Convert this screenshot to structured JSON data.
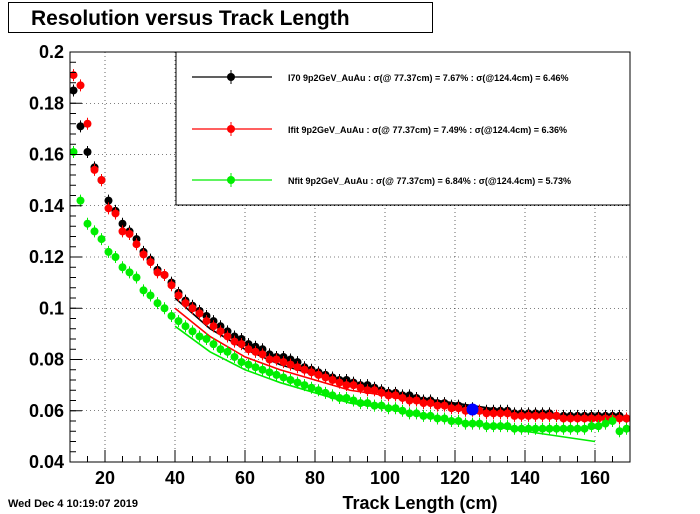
{
  "title": "Resolution versus Track Length",
  "timestamp": "Wed Dec  4 10:19:07 2019",
  "chart_data": {
    "type": "scatter",
    "title": "Resolution versus Track Length",
    "xlabel": "Track Length (cm)",
    "ylabel": "",
    "xlim": [
      10,
      170
    ],
    "ylim": [
      0.04,
      0.2
    ],
    "grid": true,
    "legend_position": "top-right",
    "x_ticks": [
      20,
      40,
      60,
      80,
      100,
      120,
      140,
      160
    ],
    "x_tick_labels": [
      "20",
      "40",
      "60",
      "80",
      "100",
      "120",
      "140",
      "160"
    ],
    "y_ticks": [
      0.04,
      0.06,
      0.08,
      0.1,
      0.12,
      0.14,
      0.16,
      0.18,
      0.2
    ],
    "y_tick_labels": [
      "0.04",
      "0.06",
      "0.08",
      "0.1",
      "0.12",
      "0.14",
      "0.16",
      "0.18",
      "0.2"
    ],
    "series": [
      {
        "name": "I70  9p2GeV_AuAu : σ(@ 77.37cm) =  7.67% : σ(@124.4cm) =  6.46%",
        "color": "#000000",
        "x": [
          11,
          13,
          15,
          17,
          19,
          21,
          23,
          25,
          27,
          29,
          31,
          33,
          35,
          37,
          39,
          41,
          43,
          45,
          47,
          49,
          51,
          53,
          55,
          57,
          59,
          61,
          63,
          65,
          67,
          69,
          71,
          73,
          75,
          77,
          79,
          81,
          83,
          85,
          87,
          89,
          91,
          93,
          95,
          97,
          99,
          101,
          103,
          105,
          107,
          109,
          111,
          113,
          115,
          117,
          119,
          121,
          123,
          125,
          127,
          129,
          131,
          133,
          135,
          137,
          139,
          141,
          143,
          145,
          147,
          149,
          151,
          153,
          155,
          157,
          159,
          161,
          163,
          165,
          167,
          169
        ],
        "y": [
          0.185,
          0.171,
          0.161,
          0.155,
          0.15,
          0.142,
          0.138,
          0.133,
          0.13,
          0.127,
          0.122,
          0.119,
          0.115,
          0.113,
          0.11,
          0.106,
          0.103,
          0.101,
          0.099,
          0.097,
          0.095,
          0.093,
          0.091,
          0.089,
          0.088,
          0.086,
          0.085,
          0.084,
          0.082,
          0.081,
          0.081,
          0.08,
          0.079,
          0.077,
          0.076,
          0.075,
          0.074,
          0.073,
          0.072,
          0.072,
          0.071,
          0.07,
          0.07,
          0.069,
          0.068,
          0.067,
          0.067,
          0.066,
          0.066,
          0.065,
          0.064,
          0.064,
          0.063,
          0.063,
          0.062,
          0.062,
          0.061,
          0.061,
          0.06,
          0.06,
          0.06,
          0.06,
          0.06,
          0.059,
          0.059,
          0.059,
          0.059,
          0.059,
          0.059,
          0.058,
          0.058,
          0.058,
          0.058,
          0.058,
          0.058,
          0.058,
          0.058,
          0.058,
          0.058,
          0.057
        ],
        "fit_x": [
          40,
          50,
          60,
          70,
          80,
          90,
          100,
          110,
          120,
          130,
          140,
          150,
          160
        ],
        "fit_y": [
          0.104,
          0.092,
          0.084,
          0.078,
          0.074,
          0.07,
          0.067,
          0.065,
          0.063,
          0.061,
          0.059,
          0.058,
          0.057
        ]
      },
      {
        "name": "Ifit 9p2GeV_AuAu : σ(@ 77.37cm) =  7.49% : σ(@124.4cm) =  6.36%",
        "color": "#ff0000",
        "x": [
          11,
          13,
          15,
          17,
          19,
          21,
          23,
          25,
          27,
          29,
          31,
          33,
          35,
          37,
          39,
          41,
          43,
          45,
          47,
          49,
          51,
          53,
          55,
          57,
          59,
          61,
          63,
          65,
          67,
          69,
          71,
          73,
          75,
          77,
          79,
          81,
          83,
          85,
          87,
          89,
          91,
          93,
          95,
          97,
          99,
          101,
          103,
          105,
          107,
          109,
          111,
          113,
          115,
          117,
          119,
          121,
          123,
          125,
          127,
          129,
          131,
          133,
          135,
          137,
          139,
          141,
          143,
          145,
          147,
          149,
          151,
          153,
          155,
          157,
          159,
          161,
          163,
          165,
          167,
          169
        ],
        "y": [
          0.191,
          0.187,
          0.172,
          0.154,
          0.15,
          0.139,
          0.137,
          0.13,
          0.129,
          0.125,
          0.121,
          0.118,
          0.114,
          0.113,
          0.109,
          0.105,
          0.102,
          0.1,
          0.098,
          0.095,
          0.093,
          0.091,
          0.089,
          0.087,
          0.086,
          0.084,
          0.083,
          0.082,
          0.08,
          0.08,
          0.079,
          0.078,
          0.077,
          0.076,
          0.075,
          0.074,
          0.073,
          0.072,
          0.071,
          0.07,
          0.07,
          0.069,
          0.068,
          0.068,
          0.067,
          0.066,
          0.066,
          0.065,
          0.064,
          0.064,
          0.063,
          0.063,
          0.062,
          0.062,
          0.061,
          0.061,
          0.06,
          0.06,
          0.06,
          0.059,
          0.059,
          0.059,
          0.059,
          0.058,
          0.058,
          0.058,
          0.058,
          0.058,
          0.058,
          0.058,
          0.057,
          0.057,
          0.057,
          0.057,
          0.057,
          0.057,
          0.057,
          0.057,
          0.057,
          0.057
        ],
        "fit_x": [
          40,
          50,
          60,
          70,
          80,
          90,
          100,
          110,
          120,
          130,
          140,
          150,
          160
        ],
        "fit_y": [
          0.1,
          0.089,
          0.081,
          0.076,
          0.072,
          0.068,
          0.066,
          0.063,
          0.061,
          0.06,
          0.058,
          0.057,
          0.056
        ]
      },
      {
        "name": "Nfit 9p2GeV_AuAu : σ(@ 77.37cm) =  6.84% : σ(@124.4cm) =  5.73%",
        "color": "#00ee00",
        "x": [
          11,
          13,
          15,
          17,
          19,
          21,
          23,
          25,
          27,
          29,
          31,
          33,
          35,
          37,
          39,
          41,
          43,
          45,
          47,
          49,
          51,
          53,
          55,
          57,
          59,
          61,
          63,
          65,
          67,
          69,
          71,
          73,
          75,
          77,
          79,
          81,
          83,
          85,
          87,
          89,
          91,
          93,
          95,
          97,
          99,
          101,
          103,
          105,
          107,
          109,
          111,
          113,
          115,
          117,
          119,
          121,
          123,
          125,
          127,
          129,
          131,
          133,
          135,
          137,
          139,
          141,
          143,
          145,
          147,
          149,
          151,
          153,
          155,
          157,
          159,
          161,
          163,
          165,
          167,
          169
        ],
        "y": [
          0.161,
          0.142,
          0.133,
          0.13,
          0.127,
          0.122,
          0.12,
          0.116,
          0.114,
          0.112,
          0.107,
          0.105,
          0.102,
          0.1,
          0.097,
          0.095,
          0.093,
          0.091,
          0.089,
          0.088,
          0.086,
          0.084,
          0.083,
          0.081,
          0.079,
          0.078,
          0.077,
          0.076,
          0.075,
          0.074,
          0.073,
          0.072,
          0.071,
          0.07,
          0.069,
          0.068,
          0.067,
          0.066,
          0.065,
          0.065,
          0.064,
          0.063,
          0.063,
          0.062,
          0.062,
          0.061,
          0.061,
          0.06,
          0.059,
          0.059,
          0.058,
          0.058,
          0.057,
          0.057,
          0.056,
          0.056,
          0.055,
          0.055,
          0.055,
          0.054,
          0.054,
          0.054,
          0.054,
          0.053,
          0.053,
          0.053,
          0.053,
          0.053,
          0.053,
          0.053,
          0.053,
          0.053,
          0.053,
          0.053,
          0.054,
          0.054,
          0.055,
          0.056,
          0.052,
          0.053
        ],
        "fit_x": [
          40,
          50,
          60,
          70,
          80,
          90,
          100,
          110,
          120,
          130,
          140,
          150,
          160
        ],
        "fit_y": [
          0.093,
          0.083,
          0.076,
          0.071,
          0.067,
          0.063,
          0.061,
          0.058,
          0.056,
          0.054,
          0.052,
          0.05,
          0.048
        ]
      }
    ],
    "marker_highlight": {
      "x": 125,
      "y": 0.0605,
      "color": "#0000ff"
    }
  }
}
